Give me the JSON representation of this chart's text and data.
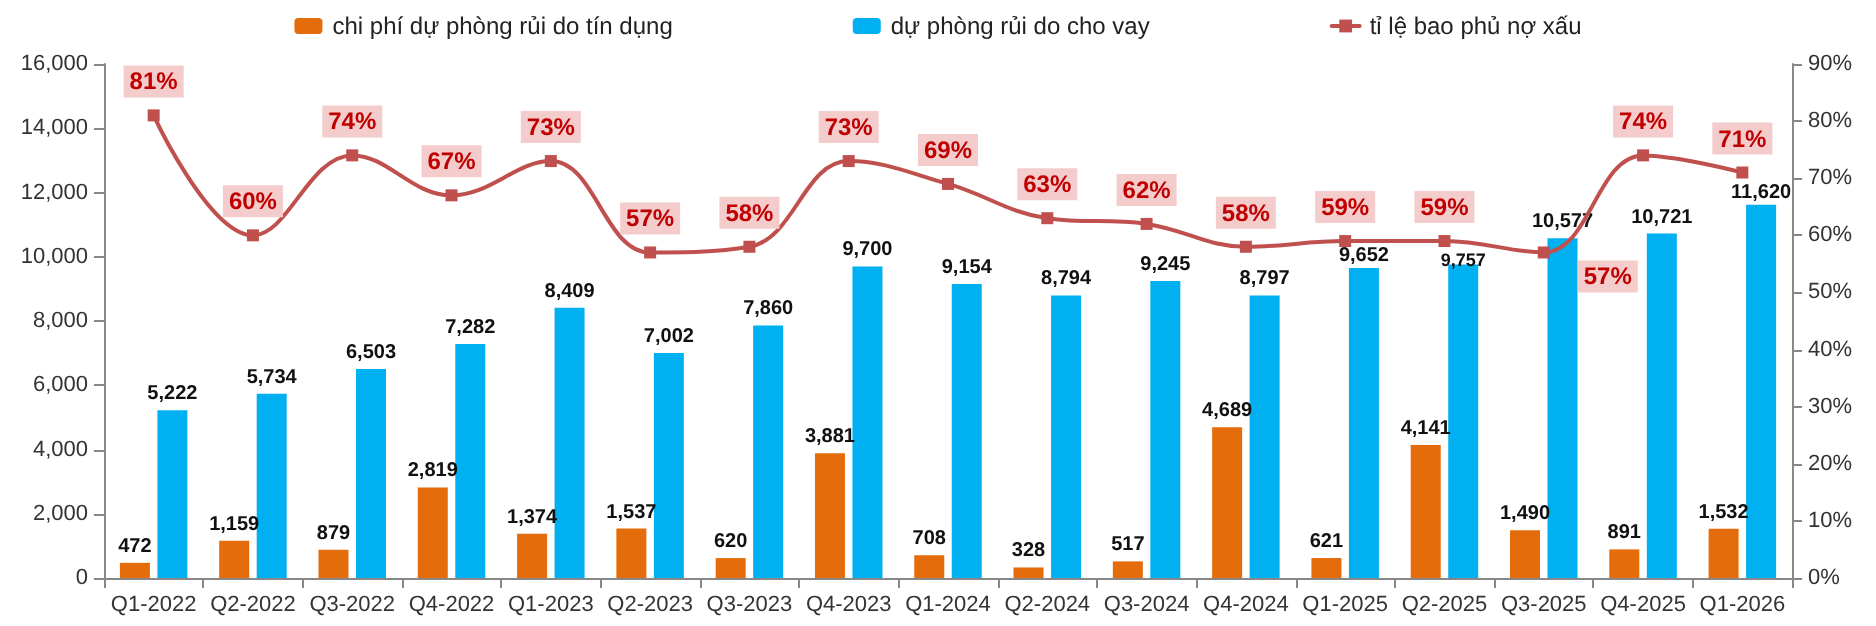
{
  "chart_data": {
    "type": "bar",
    "categories": [
      "Q1-2022",
      "Q2-2022",
      "Q3-2022",
      "Q4-2022",
      "Q1-2023",
      "Q2-2023",
      "Q3-2023",
      "Q4-2023",
      "Q1-2024",
      "Q2-2024",
      "Q3-2024",
      "Q4-2024",
      "Q1-2025",
      "Q2-2025",
      "Q3-2025",
      "Q4-2025",
      "Q1-2026"
    ],
    "series": [
      {
        "name": "chi phí dự phòng rủi do tín dụng",
        "color": "#e46c0a",
        "values": [
          472,
          1159,
          879,
          2819,
          1374,
          1537,
          620,
          3881,
          708,
          328,
          517,
          4689,
          621,
          4141,
          1490,
          891,
          1532
        ],
        "value_labels": [
          "472",
          "1,159",
          "879",
          "2,819",
          "1,374",
          "1,537",
          "620",
          "3,881",
          "708",
          "328",
          "517",
          "4,689",
          "621",
          "4,141",
          "1,490",
          "891",
          "1,532"
        ]
      },
      {
        "name": "dự phòng rủi do cho vay",
        "color": "#00b0f0",
        "values": [
          5222,
          5734,
          6503,
          7282,
          8409,
          7002,
          7860,
          9700,
          9154,
          8794,
          9245,
          8797,
          9652,
          9757,
          10577,
          10721,
          11620
        ],
        "value_labels": [
          "5,222",
          "5,734",
          "6,503",
          "7,282",
          "8,409",
          "7,002",
          "7,860",
          "9,700",
          "9,154",
          "8,794",
          "9,245",
          "8,797",
          "9,652",
          "9,757",
          "10,577",
          "10,721",
          "11,620"
        ]
      },
      {
        "name": "tỉ lệ bao phủ nợ xấu",
        "type": "line",
        "axis": "y2",
        "color": "#c0504d",
        "marker": "square",
        "values": [
          81,
          60,
          74,
          67,
          73,
          57,
          58,
          73,
          69,
          63,
          62,
          58,
          59,
          59,
          57,
          74,
          71
        ],
        "value_labels": [
          "81%",
          "60%",
          "74%",
          "67%",
          "73%",
          "57%",
          "58%",
          "73%",
          "69%",
          "63%",
          "62%",
          "58%",
          "59%",
          "59%",
          "57%",
          "74%",
          "71%"
        ]
      }
    ],
    "ylim": [
      0,
      16000
    ],
    "yticks": [
      0,
      {
        "value": 2000,
        "label": "2,000"
      },
      {
        "value": 4000,
        "label": "4,000"
      },
      {
        "value": 6000,
        "label": "6,000"
      },
      {
        "value": 8000,
        "label": "8,000"
      },
      {
        "value": 10000,
        "label": "10,000"
      },
      {
        "value": 12000,
        "label": "12,000"
      },
      {
        "value": 14000,
        "label": "14,000"
      },
      {
        "value": 16000,
        "label": "16,000"
      }
    ],
    "y2lim": [
      0,
      90
    ],
    "y2ticks": [
      {
        "value": 0,
        "label": "0%"
      },
      {
        "value": 10,
        "label": "10%"
      },
      {
        "value": 20,
        "label": "20%"
      },
      {
        "value": 30,
        "label": "30%"
      },
      {
        "value": 40,
        "label": "40%"
      },
      {
        "value": 50,
        "label": "50%"
      },
      {
        "value": 60,
        "label": "60%"
      },
      {
        "value": 70,
        "label": "70%"
      },
      {
        "value": 80,
        "label": "80%"
      },
      {
        "value": 90,
        "label": "90%"
      }
    ],
    "legend": "top"
  }
}
